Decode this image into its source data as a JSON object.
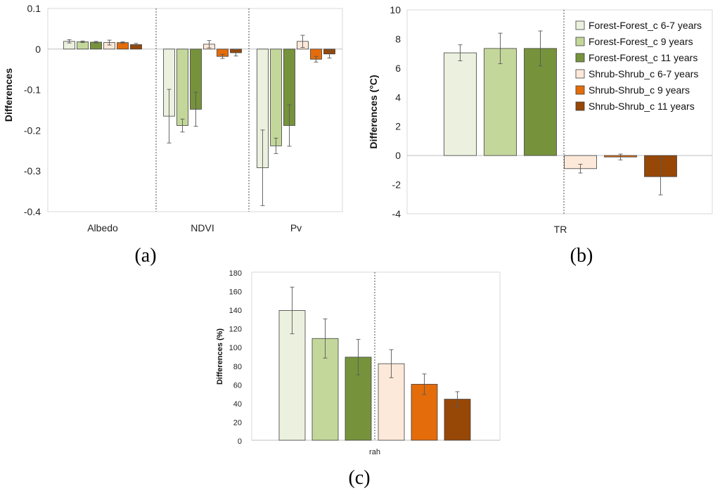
{
  "series_styles": [
    {
      "name": "Forest-Forest_c 6-7 years",
      "color": "#ebf1de"
    },
    {
      "name": "Forest-Forest_c 9 years",
      "color": "#c4d79b"
    },
    {
      "name": "Forest-Forest_c 11 years",
      "color": "#76933c"
    },
    {
      "name": "Shrub-Shrub_c 6-7 years",
      "color": "#fde9d9"
    },
    {
      "name": "Shrub-Shrub_c 9 years",
      "color": "#e46c0a"
    },
    {
      "name": "Shrub-Shrub_c 11 years",
      "color": "#974706"
    }
  ],
  "chart_data": [
    {
      "id": "a",
      "panel_label": "(a)",
      "type": "bar",
      "ylabel": "Differences",
      "ylim": [
        -0.4,
        0.1
      ],
      "yticks": [
        0.1,
        0,
        -0.1,
        -0.2,
        -0.3,
        -0.4
      ],
      "ytick_labels": [
        "0.1",
        "0",
        "-0.1",
        "-0.2",
        "-0.3",
        "-0.4"
      ],
      "categories": [
        "Albedo",
        "NDVI",
        "Pv"
      ],
      "series": [
        {
          "name": "Forest-Forest_c 6-7 years",
          "values": [
            0.019,
            -0.165,
            -0.292
          ],
          "errors": [
            0.004,
            0.066,
            0.093
          ]
        },
        {
          "name": "Forest-Forest_c 9 years",
          "values": [
            0.018,
            -0.188,
            -0.238
          ],
          "errors": [
            0.002,
            0.016,
            0.019
          ]
        },
        {
          "name": "Forest-Forest_c 11 years",
          "values": [
            0.017,
            -0.148,
            -0.188
          ],
          "errors": [
            0.002,
            0.042,
            0.051
          ]
        },
        {
          "name": "Shrub-Shrub_c 6-7 years",
          "values": [
            0.016,
            0.012,
            0.019
          ],
          "errors": [
            0.006,
            0.009,
            0.015
          ]
        },
        {
          "name": "Shrub-Shrub_c 9 years",
          "values": [
            0.016,
            -0.018,
            -0.025
          ],
          "errors": [
            0.002,
            0.005,
            0.007
          ]
        },
        {
          "name": "Shrub-Shrub_c 11 years",
          "values": [
            0.011,
            -0.009,
            -0.012
          ],
          "errors": [
            0.003,
            0.008,
            0.01
          ]
        }
      ]
    },
    {
      "id": "b",
      "panel_label": "(b)",
      "type": "bar",
      "ylabel": "Differences (°C)",
      "ylim": [
        -4,
        10
      ],
      "yticks": [
        10,
        8,
        6,
        4,
        2,
        0,
        -2,
        -4
      ],
      "ytick_labels": [
        "10",
        "8",
        "6",
        "4",
        "2",
        "0",
        "-2",
        "-4"
      ],
      "categories": [
        "TR"
      ],
      "series": [
        {
          "name": "Forest-Forest_c 6-7 years",
          "values": [
            7.05
          ],
          "errors": [
            0.55
          ]
        },
        {
          "name": "Forest-Forest_c 9 years",
          "values": [
            7.35
          ],
          "errors": [
            1.05
          ]
        },
        {
          "name": "Forest-Forest_c 11 years",
          "values": [
            7.35
          ],
          "errors": [
            1.2
          ]
        },
        {
          "name": "Shrub-Shrub_c 6-7 years",
          "values": [
            -0.9
          ],
          "errors": [
            0.3
          ]
        },
        {
          "name": "Shrub-Shrub_c 9 years",
          "values": [
            -0.1
          ],
          "errors": [
            0.2
          ]
        },
        {
          "name": "Shrub-Shrub_c 11 years",
          "values": [
            -1.45
          ],
          "errors": [
            1.25
          ]
        }
      ]
    },
    {
      "id": "c",
      "panel_label": "(c)",
      "type": "bar",
      "ylabel": "Differences (%)",
      "ylim": [
        0,
        180
      ],
      "yticks": [
        180,
        160,
        140,
        120,
        100,
        80,
        60,
        40,
        20,
        0
      ],
      "ytick_labels": [
        "180",
        "160",
        "140",
        "120",
        "100",
        "80",
        "60",
        "40",
        "20",
        "0"
      ],
      "categories": [
        "rah"
      ],
      "series": [
        {
          "name": "Forest-Forest_c 6-7 years",
          "values": [
            139
          ],
          "errors": [
            25
          ]
        },
        {
          "name": "Forest-Forest_c 9 years",
          "values": [
            109
          ],
          "errors": [
            21
          ]
        },
        {
          "name": "Forest-Forest_c 11 years",
          "values": [
            89
          ],
          "errors": [
            19
          ]
        },
        {
          "name": "Shrub-Shrub_c 6-7 years",
          "values": [
            82
          ],
          "errors": [
            15
          ]
        },
        {
          "name": "Shrub-Shrub_c 9 years",
          "values": [
            60
          ],
          "errors": [
            11
          ]
        },
        {
          "name": "Shrub-Shrub_c 11 years",
          "values": [
            44
          ],
          "errors": [
            8
          ]
        }
      ]
    }
  ]
}
